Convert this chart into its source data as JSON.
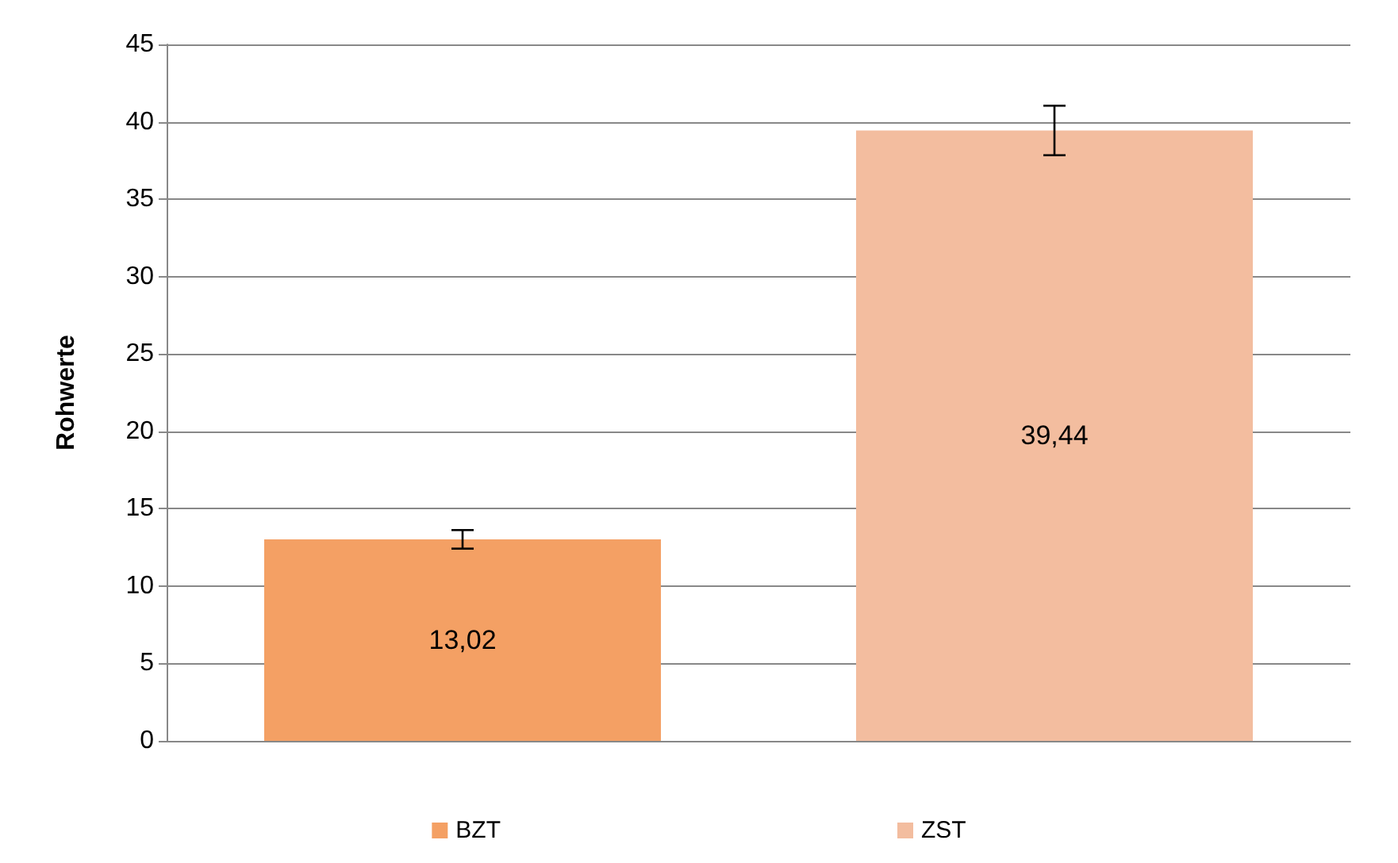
{
  "chart_data": {
    "type": "bar",
    "ylabel": "Rohwerte",
    "categories": [
      null
    ],
    "series": [
      {
        "name": "BZT",
        "color": "#f4a064",
        "values": [
          13.02
        ],
        "errors": [
          0.6
        ],
        "value_labels": [
          "13,02"
        ]
      },
      {
        "name": "ZST",
        "color": "#f3bd9f",
        "values": [
          39.44
        ],
        "errors": [
          1.6
        ],
        "value_labels": [
          "39,44"
        ]
      }
    ],
    "ylim": [
      0,
      45
    ],
    "yticks": [
      0,
      5,
      10,
      15,
      20,
      25,
      30,
      35,
      40,
      45
    ],
    "grid": "y",
    "legend": "bottom"
  }
}
